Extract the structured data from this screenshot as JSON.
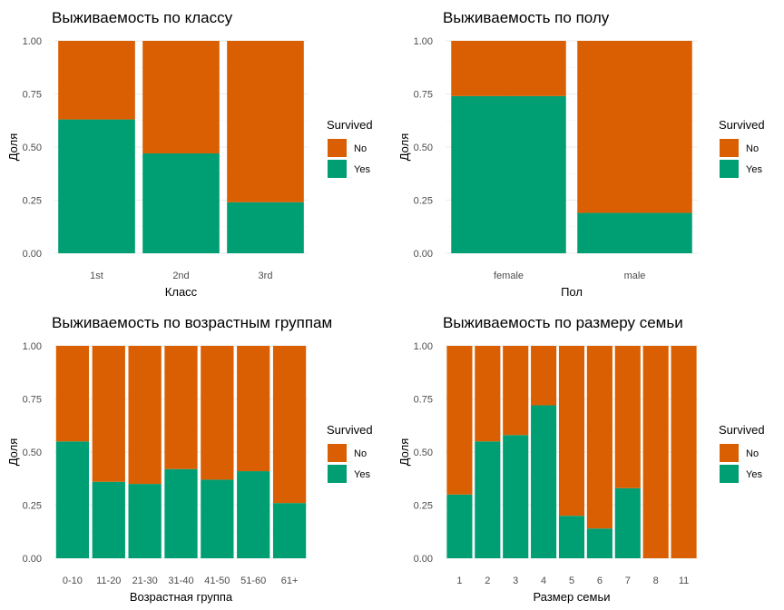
{
  "colors": {
    "no": "#D95F02",
    "yes": "#009E73"
  },
  "legend": {
    "title": "Survived",
    "items": [
      {
        "label": "No",
        "color": "#D95F02"
      },
      {
        "label": "Yes",
        "color": "#009E73"
      }
    ]
  },
  "chart_data": [
    {
      "type": "bar",
      "stacked": true,
      "title": "Выживаемость по классу",
      "xlabel": "Класс",
      "ylabel": "Доля",
      "ylim": [
        0,
        1
      ],
      "yticks": [
        "0.00",
        "0.25",
        "0.50",
        "0.75",
        "1.00"
      ],
      "categories": [
        "1st",
        "2nd",
        "3rd"
      ],
      "series": [
        {
          "name": "Yes",
          "values": [
            0.63,
            0.47,
            0.24
          ]
        },
        {
          "name": "No",
          "values": [
            0.37,
            0.53,
            0.76
          ]
        }
      ]
    },
    {
      "type": "bar",
      "stacked": true,
      "title": "Выживаемость по полу",
      "xlabel": "Пол",
      "ylabel": "Доля",
      "ylim": [
        0,
        1
      ],
      "yticks": [
        "0.00",
        "0.25",
        "0.50",
        "0.75",
        "1.00"
      ],
      "categories": [
        "female",
        "male"
      ],
      "series": [
        {
          "name": "Yes",
          "values": [
            0.74,
            0.19
          ]
        },
        {
          "name": "No",
          "values": [
            0.26,
            0.81
          ]
        }
      ]
    },
    {
      "type": "bar",
      "stacked": true,
      "title": "Выживаемость по возрастным группам",
      "xlabel": "Возрастная группа",
      "ylabel": "Доля",
      "ylim": [
        0,
        1
      ],
      "yticks": [
        "0.00",
        "0.25",
        "0.50",
        "0.75",
        "1.00"
      ],
      "categories": [
        "0-10",
        "11-20",
        "21-30",
        "31-40",
        "41-50",
        "51-60",
        "61+"
      ],
      "series": [
        {
          "name": "Yes",
          "values": [
            0.55,
            0.36,
            0.35,
            0.42,
            0.37,
            0.41,
            0.26
          ]
        },
        {
          "name": "No",
          "values": [
            0.45,
            0.64,
            0.65,
            0.58,
            0.63,
            0.59,
            0.74
          ]
        }
      ]
    },
    {
      "type": "bar",
      "stacked": true,
      "title": "Выживаемость по размеру семьи",
      "xlabel": "Размер семьи",
      "ylabel": "Доля",
      "ylim": [
        0,
        1
      ],
      "yticks": [
        "0.00",
        "0.25",
        "0.50",
        "0.75",
        "1.00"
      ],
      "categories": [
        "1",
        "2",
        "3",
        "4",
        "5",
        "6",
        "7",
        "8",
        "11"
      ],
      "series": [
        {
          "name": "Yes",
          "values": [
            0.3,
            0.55,
            0.58,
            0.72,
            0.2,
            0.14,
            0.33,
            0.0,
            0.0
          ]
        },
        {
          "name": "No",
          "values": [
            0.7,
            0.45,
            0.42,
            0.28,
            0.8,
            0.86,
            0.67,
            1.0,
            1.0
          ]
        }
      ]
    }
  ]
}
